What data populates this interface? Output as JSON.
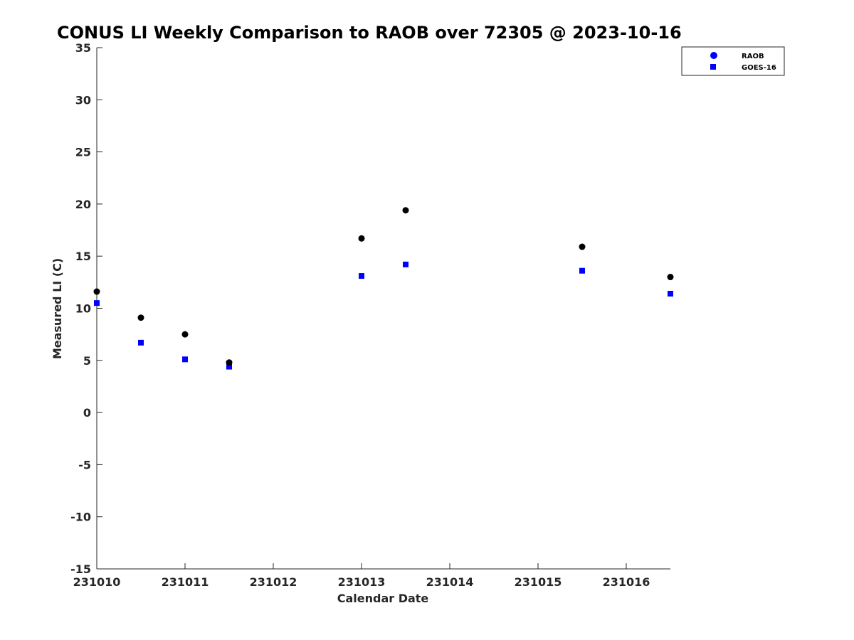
{
  "chart_data": {
    "type": "scatter",
    "title": "CONUS LI Weekly Comparison to RAOB over 72305 @ 2023-10-16",
    "xlabel": "Calendar Date",
    "ylabel": "Measured LI (C)",
    "x_ticks": [
      "231010",
      "231011",
      "231012",
      "231013",
      "231014",
      "231015",
      "231016"
    ],
    "xlim": [
      0,
      6.5
    ],
    "ylim": [
      -15,
      35
    ],
    "y_ticks": [
      -15,
      -10,
      -5,
      0,
      5,
      10,
      15,
      20,
      25,
      30,
      35
    ],
    "legend_position": "top-right",
    "series": [
      {
        "name": "RAOB",
        "marker": "circle",
        "color": "#000000",
        "legend_color": "#0000ff",
        "x": [
          0,
          0.5,
          1,
          1.5,
          3,
          3.5,
          5.5,
          6.5
        ],
        "y": [
          11.6,
          9.1,
          7.5,
          4.8,
          16.7,
          19.4,
          15.9,
          13.0
        ]
      },
      {
        "name": "GOES-16",
        "marker": "square",
        "color": "#0000ff",
        "legend_color": "#0000ff",
        "x": [
          0,
          0.5,
          1,
          1.5,
          3,
          3.5,
          5.5,
          6.5
        ],
        "y": [
          10.5,
          6.7,
          5.1,
          4.4,
          13.1,
          14.2,
          13.6,
          11.4
        ]
      }
    ]
  }
}
